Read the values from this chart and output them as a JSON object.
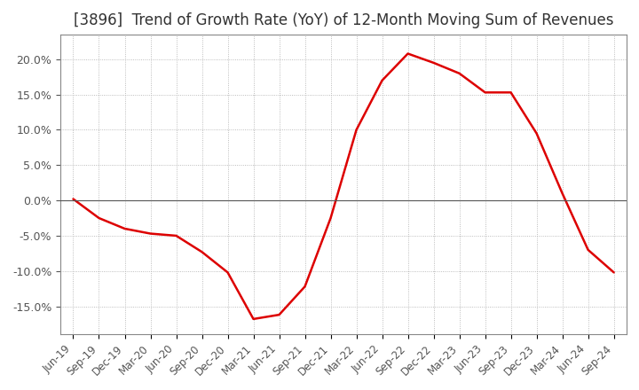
{
  "title": "[3896]  Trend of Growth Rate (YoY) of 12-Month Moving Sum of Revenues",
  "title_fontsize": 12,
  "line_color": "#dd0000",
  "background_color": "#ffffff",
  "grid_color": "#aaaaaa",
  "ylim": [
    -0.19,
    0.235
  ],
  "yticks": [
    -0.15,
    -0.1,
    -0.05,
    0.0,
    0.05,
    0.1,
    0.15,
    0.2
  ],
  "x_labels": [
    "Jun-19",
    "Sep-19",
    "Dec-19",
    "Mar-20",
    "Jun-20",
    "Sep-20",
    "Dec-20",
    "Mar-21",
    "Jun-21",
    "Sep-21",
    "Dec-21",
    "Mar-22",
    "Jun-22",
    "Sep-22",
    "Dec-22",
    "Mar-23",
    "Jun-23",
    "Sep-23",
    "Dec-23",
    "Mar-24",
    "Jun-24",
    "Sep-24"
  ],
  "data": [
    0.002,
    -0.025,
    -0.04,
    -0.047,
    -0.05,
    -0.073,
    -0.102,
    -0.168,
    -0.162,
    -0.122,
    -0.025,
    0.1,
    0.17,
    0.208,
    0.195,
    0.18,
    0.153,
    0.153,
    0.095,
    0.01,
    -0.07,
    -0.102
  ]
}
